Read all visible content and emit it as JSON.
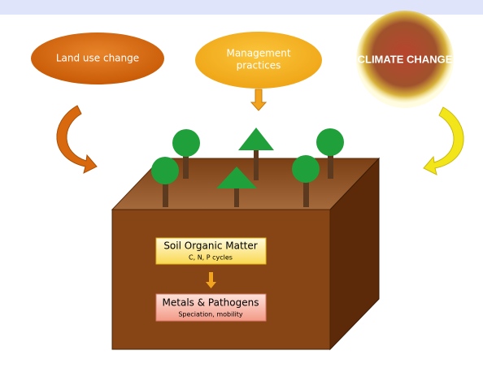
{
  "drivers": {
    "land_use": "Land use change",
    "management": [
      "Management",
      "practices"
    ],
    "climate": "CLIMATE CHANGE"
  },
  "soil_box": {
    "organic_matter": {
      "title": "Soil Organic Matter",
      "subtitle": "C, N, P cycles"
    },
    "metals": {
      "title": "Metals & Pathogens",
      "subtitle": "Speciation, mobility"
    }
  }
}
